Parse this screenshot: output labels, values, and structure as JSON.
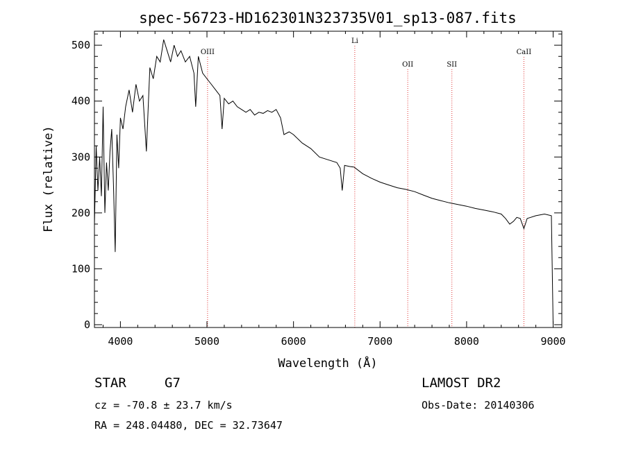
{
  "chart_data": {
    "type": "line",
    "title": "spec-56723-HD162301N323735V01_sp13-087.fits",
    "xlabel": "Wavelength (Å)",
    "ylabel": "Flux (relative)",
    "xlim": [
      3700,
      9100
    ],
    "ylim": [
      -5,
      525
    ],
    "x_ticks": [
      4000,
      5000,
      6000,
      7000,
      8000,
      9000
    ],
    "y_ticks": [
      0,
      100,
      200,
      300,
      400,
      500
    ],
    "grid": false,
    "line_color": "#000000",
    "marker_color": "#e03030",
    "spectral_lines": [
      {
        "name": "OIII",
        "wavelength": 5007
      },
      {
        "name": "Li",
        "wavelength": 6708
      },
      {
        "name": "OII",
        "wavelength": 7320
      },
      {
        "name": "SII",
        "wavelength": 7830
      },
      {
        "name": "CaII",
        "wavelength": 8662
      }
    ],
    "series": [
      {
        "x": [
          3700,
          3720,
          3740,
          3760,
          3780,
          3800,
          3820,
          3840,
          3860,
          3880,
          3900,
          3920,
          3940,
          3960,
          3980,
          4000,
          4030,
          4060,
          4100,
          4140,
          4180,
          4220,
          4260,
          4300,
          4340,
          4380,
          4420,
          4460,
          4500,
          4540,
          4580,
          4620,
          4660,
          4700,
          4750,
          4800,
          4850,
          4870,
          4900,
          4950,
          5000,
          5050,
          5100,
          5150,
          5175,
          5200,
          5250,
          5300,
          5350,
          5400,
          5450,
          5500,
          5550,
          5600,
          5650,
          5700,
          5750,
          5800,
          5850,
          5890,
          5950,
          6000,
          6100,
          6200,
          6300,
          6400,
          6500,
          6540,
          6563,
          6590,
          6650,
          6700,
          6800,
          6900,
          7000,
          7100,
          7200,
          7300,
          7400,
          7500,
          7600,
          7700,
          7800,
          7900,
          8000,
          8100,
          8200,
          8300,
          8400,
          8450,
          8498,
          8542,
          8580,
          8620,
          8662,
          8700,
          8800,
          8900,
          8980,
          9000
        ],
        "y": [
          180,
          320,
          240,
          300,
          230,
          390,
          200,
          290,
          240,
          310,
          350,
          250,
          130,
          340,
          280,
          370,
          350,
          390,
          420,
          380,
          430,
          400,
          410,
          310,
          460,
          440,
          480,
          470,
          510,
          490,
          470,
          500,
          480,
          490,
          470,
          480,
          450,
          390,
          480,
          450,
          440,
          430,
          420,
          410,
          350,
          405,
          395,
          400,
          390,
          385,
          380,
          385,
          375,
          380,
          378,
          383,
          380,
          385,
          370,
          340,
          345,
          340,
          325,
          315,
          300,
          295,
          290,
          280,
          240,
          285,
          283,
          282,
          270,
          262,
          255,
          250,
          245,
          242,
          238,
          232,
          226,
          222,
          218,
          215,
          212,
          208,
          205,
          202,
          198,
          190,
          180,
          185,
          192,
          190,
          172,
          190,
          195,
          198,
          195,
          0
        ]
      }
    ]
  },
  "footer": {
    "object_type": "STAR",
    "subclass": "G7",
    "survey": "LAMOST DR2",
    "cz": "cz = -70.8 ± 23.7 km/s",
    "obs_date": "Obs-Date: 20140306",
    "coords": "RA = 248.04480, DEC =  32.73647"
  }
}
